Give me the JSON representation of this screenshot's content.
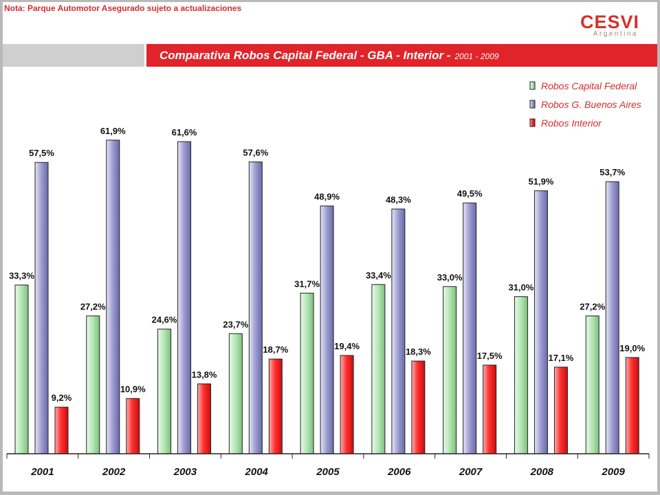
{
  "note": "Nota: Parque Automotor Asegurado sujeto a actualizaciones",
  "logo": {
    "main": "CESVI",
    "sub": "Argentina"
  },
  "header": {
    "title": "Comparativa Robos Capital Federal - GBA - Interior -",
    "subtitle": "2001 - 2009"
  },
  "colors": {
    "accent_red": "#e0242a",
    "text_red": "#d32c2c",
    "band_grey": "#cfcfcf"
  },
  "chart_data": {
    "type": "bar",
    "categories": [
      "2001",
      "2002",
      "2003",
      "2004",
      "2005",
      "2006",
      "2007",
      "2008",
      "2009"
    ],
    "series": [
      {
        "name": "Robos Capital Federal",
        "values": [
          33.3,
          27.2,
          24.6,
          23.7,
          31.7,
          33.4,
          33.0,
          31.0,
          27.2
        ],
        "labels": [
          "33,3%",
          "27,2%",
          "24,6%",
          "23,7%",
          "31,7%",
          "33,4%",
          "33,0%",
          "31,0%",
          "27,2%"
        ],
        "color": "#8fd68f"
      },
      {
        "name": "Robos G. Buenos Aires",
        "values": [
          57.5,
          61.9,
          61.6,
          57.6,
          48.9,
          48.3,
          49.5,
          51.9,
          53.7
        ],
        "labels": [
          "57,5%",
          "61,9%",
          "61,6%",
          "57,6%",
          "48,9%",
          "48,3%",
          "49,5%",
          "51,9%",
          "53,7%"
        ],
        "color": "#8585c0"
      },
      {
        "name": "Robos Interior",
        "values": [
          9.2,
          10.9,
          13.8,
          18.7,
          19.4,
          18.3,
          17.5,
          17.1,
          19.0
        ],
        "labels": [
          "9,2%",
          "10,9%",
          "13,8%",
          "18,7%",
          "19,4%",
          "18,3%",
          "17,5%",
          "17,1%",
          "19,0%"
        ],
        "color": "#ee2020"
      }
    ],
    "ylim": [
      0,
      100
    ],
    "grid": false,
    "legend": "top-right"
  }
}
